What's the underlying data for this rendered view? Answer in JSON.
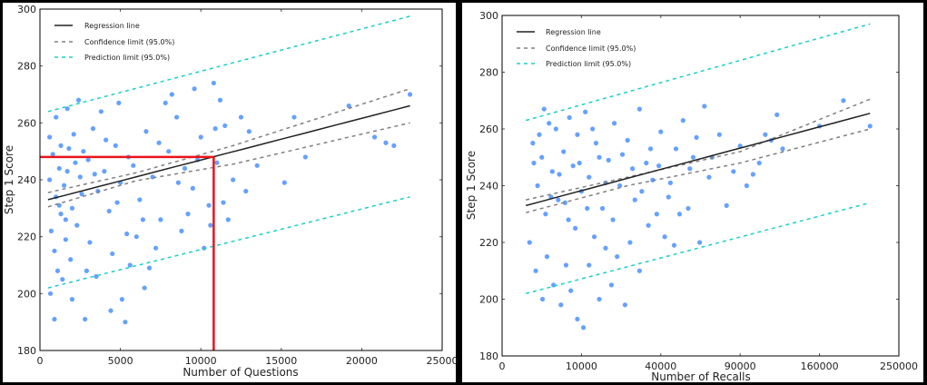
{
  "chart_data": [
    {
      "type": "scatter",
      "title": "",
      "xlabel": "Number of Questions",
      "ylabel": "Step 1 Score",
      "xscale": "linear",
      "xlim": [
        0,
        25000
      ],
      "ylim": [
        180,
        300
      ],
      "xticks": [
        "0",
        "5000",
        "10000",
        "15000",
        "20000",
        "25000"
      ],
      "xtick_values": [
        0,
        5000,
        10000,
        15000,
        20000,
        25000
      ],
      "yticks": [
        "180",
        "200",
        "220",
        "240",
        "260",
        "280",
        "300"
      ],
      "ytick_values": [
        180,
        200,
        220,
        240,
        260,
        280,
        300
      ],
      "grid": false,
      "legend_position": "top-left",
      "legend": [
        "Regression line",
        "Confidence limit (95.0%)",
        "Prediction limit (95.0%)"
      ],
      "colors": {
        "points": "#4a90ff",
        "regression": "#222222",
        "confidence": "#808080",
        "prediction": "#1ccfc9",
        "annotation": "#e8141b"
      },
      "regression": [
        [
          500,
          233
        ],
        [
          23000,
          266
        ]
      ],
      "confidence_upper": [
        [
          500,
          235.5
        ],
        [
          6000,
          242.5
        ],
        [
          12000,
          252
        ],
        [
          23000,
          272
        ]
      ],
      "confidence_lower": [
        [
          500,
          230.5
        ],
        [
          6000,
          239.7
        ],
        [
          12000,
          245.5
        ],
        [
          23000,
          260
        ]
      ],
      "prediction_upper": [
        [
          500,
          264
        ],
        [
          23000,
          297.5
        ]
      ],
      "prediction_lower": [
        [
          500,
          202
        ],
        [
          23000,
          234
        ]
      ],
      "annotation": {
        "x": 10800,
        "y": 248
      },
      "points": [
        [
          600,
          255
        ],
        [
          800,
          249
        ],
        [
          1000,
          262
        ],
        [
          1200,
          244
        ],
        [
          1500,
          238
        ],
        [
          1800,
          251
        ],
        [
          2000,
          230
        ],
        [
          2200,
          246
        ],
        [
          2500,
          241
        ],
        [
          700,
          222
        ],
        [
          900,
          215
        ],
        [
          1100,
          208
        ],
        [
          1300,
          228
        ],
        [
          1600,
          219
        ],
        [
          1900,
          212
        ],
        [
          2300,
          224
        ],
        [
          2600,
          235
        ],
        [
          3000,
          247
        ],
        [
          3300,
          258
        ],
        [
          3600,
          236
        ],
        [
          4000,
          243
        ],
        [
          4300,
          229
        ],
        [
          4700,
          252
        ],
        [
          5000,
          239
        ],
        [
          5400,
          221
        ],
        [
          5800,
          245
        ],
        [
          6200,
          233
        ],
        [
          6600,
          257
        ],
        [
          7000,
          241
        ],
        [
          7500,
          226
        ],
        [
          8000,
          250
        ],
        [
          8500,
          262
        ],
        [
          9000,
          244
        ],
        [
          9500,
          237
        ],
        [
          10000,
          255
        ],
        [
          10500,
          231
        ],
        [
          11000,
          246
        ],
        [
          11500,
          259
        ],
        [
          12000,
          240
        ],
        [
          12500,
          262
        ],
        [
          13000,
          257
        ],
        [
          13500,
          245
        ],
        [
          15200,
          239
        ],
        [
          15800,
          262
        ],
        [
          16500,
          248
        ],
        [
          19200,
          266
        ],
        [
          20800,
          255
        ],
        [
          21500,
          253
        ],
        [
          22000,
          252
        ],
        [
          23000,
          270
        ],
        [
          650,
          200
        ],
        [
          900,
          191
        ],
        [
          1400,
          205
        ],
        [
          2000,
          198
        ],
        [
          2800,
          191
        ],
        [
          3500,
          206
        ],
        [
          4400,
          194
        ],
        [
          5100,
          198
        ],
        [
          5300,
          190
        ],
        [
          6500,
          202
        ],
        [
          1700,
          265
        ],
        [
          2400,
          268
        ],
        [
          3800,
          264
        ],
        [
          4900,
          267
        ],
        [
          8200,
          270
        ],
        [
          9600,
          272
        ],
        [
          10800,
          274
        ],
        [
          11200,
          268
        ],
        [
          7800,
          267
        ],
        [
          3100,
          218
        ],
        [
          4500,
          214
        ],
        [
          5600,
          210
        ],
        [
          6000,
          220
        ],
        [
          7200,
          216
        ],
        [
          8800,
          222
        ],
        [
          10200,
          216
        ],
        [
          10600,
          224
        ],
        [
          9200,
          228
        ],
        [
          11400,
          232
        ],
        [
          12800,
          236
        ],
        [
          600,
          240
        ],
        [
          1000,
          234
        ],
        [
          1300,
          252
        ],
        [
          1700,
          243
        ],
        [
          2100,
          256
        ],
        [
          2700,
          250
        ],
        [
          3400,
          242
        ],
        [
          4100,
          254
        ],
        [
          4800,
          232
        ],
        [
          5500,
          248
        ],
        [
          6400,
          226
        ],
        [
          7400,
          253
        ],
        [
          8600,
          239
        ],
        [
          9800,
          247
        ],
        [
          10900,
          258
        ],
        [
          11700,
          226
        ],
        [
          6800,
          209
        ],
        [
          2900,
          208
        ],
        [
          1600,
          226
        ],
        [
          1200,
          231
        ]
      ]
    },
    {
      "type": "scatter",
      "title": "",
      "xlabel": "Number of Recalls",
      "ylabel": "Step 1 Score",
      "xscale": "sqrt",
      "xlim": [
        0,
        250000
      ],
      "ylim": [
        180,
        300
      ],
      "xticks": [
        "0",
        "10000",
        "40000",
        "90000",
        "160000",
        "250000"
      ],
      "xtick_values": [
        0,
        10000,
        40000,
        90000,
        160000,
        250000
      ],
      "yticks": [
        "180",
        "200",
        "220",
        "240",
        "260",
        "280",
        "300"
      ],
      "ytick_values": [
        180,
        200,
        220,
        240,
        260,
        280,
        300
      ],
      "grid": false,
      "legend_position": "top-left",
      "legend": [
        "Regression line",
        "Confidence limit (95.0%)",
        "Prediction limit (95.0%)"
      ],
      "colors": {
        "points": "#4a90ff",
        "regression": "#222222",
        "confidence": "#808080",
        "prediction": "#1ccfc9"
      },
      "regression": [
        [
          900,
          233
        ],
        [
          215000,
          265.5
        ]
      ],
      "confidence_upper": [
        [
          900,
          235
        ],
        [
          25000,
          243
        ],
        [
          90000,
          252
        ],
        [
          215000,
          270.5
        ]
      ],
      "confidence_lower": [
        [
          900,
          230.5
        ],
        [
          25000,
          240
        ],
        [
          90000,
          248
        ],
        [
          215000,
          260
        ]
      ],
      "prediction_upper": [
        [
          900,
          263
        ],
        [
          215000,
          297
        ]
      ],
      "prediction_lower": [
        [
          900,
          202
        ],
        [
          215000,
          234
        ]
      ],
      "points": [
        [
          1500,
          255
        ],
        [
          2000,
          240
        ],
        [
          2500,
          250
        ],
        [
          3000,
          230
        ],
        [
          3500,
          262
        ],
        [
          4000,
          245
        ],
        [
          5000,
          235
        ],
        [
          6000,
          252
        ],
        [
          7000,
          228
        ],
        [
          8000,
          247
        ],
        [
          9000,
          258
        ],
        [
          10000,
          238
        ],
        [
          11000,
          266
        ],
        [
          12000,
          243
        ],
        [
          14000,
          255
        ],
        [
          16000,
          232
        ],
        [
          18000,
          249
        ],
        [
          20000,
          262
        ],
        [
          22000,
          240
        ],
        [
          25000,
          256
        ],
        [
          28000,
          235
        ],
        [
          30000,
          267
        ],
        [
          33000,
          248
        ],
        [
          36000,
          242
        ],
        [
          40000,
          259
        ],
        [
          44000,
          236
        ],
        [
          48000,
          253
        ],
        [
          52000,
          263
        ],
        [
          56000,
          246
        ],
        [
          60000,
          257
        ],
        [
          65000,
          268
        ],
        [
          70000,
          250
        ],
        [
          75000,
          258
        ],
        [
          80000,
          233
        ],
        [
          85000,
          245
        ],
        [
          90000,
          254
        ],
        [
          100000,
          244
        ],
        [
          115000,
          256
        ],
        [
          120000,
          265
        ],
        [
          125000,
          253
        ],
        [
          160000,
          261
        ],
        [
          185000,
          270
        ],
        [
          215000,
          261
        ],
        [
          1200,
          220
        ],
        [
          1800,
          210
        ],
        [
          2600,
          200
        ],
        [
          3200,
          215
        ],
        [
          4200,
          205
        ],
        [
          5500,
          198
        ],
        [
          6500,
          212
        ],
        [
          7500,
          203
        ],
        [
          9000,
          193
        ],
        [
          10500,
          190
        ],
        [
          12000,
          212
        ],
        [
          13500,
          222
        ],
        [
          15000,
          200
        ],
        [
          17000,
          218
        ],
        [
          19000,
          205
        ],
        [
          21000,
          215
        ],
        [
          24000,
          198
        ],
        [
          26000,
          220
        ],
        [
          30000,
          210
        ],
        [
          34000,
          226
        ],
        [
          38000,
          230
        ],
        [
          42000,
          222
        ],
        [
          47000,
          219
        ],
        [
          55000,
          232
        ],
        [
          62000,
          220
        ],
        [
          1600,
          248
        ],
        [
          2200,
          258
        ],
        [
          2800,
          267
        ],
        [
          3800,
          236
        ],
        [
          4600,
          260
        ],
        [
          5200,
          244
        ],
        [
          6300,
          234
        ],
        [
          7200,
          264
        ],
        [
          8500,
          225
        ],
        [
          9500,
          248
        ],
        [
          11500,
          232
        ],
        [
          13000,
          260
        ],
        [
          15000,
          250
        ],
        [
          17000,
          241
        ],
        [
          19500,
          228
        ],
        [
          23000,
          251
        ],
        [
          27000,
          246
        ],
        [
          31000,
          238
        ],
        [
          35000,
          253
        ],
        [
          39000,
          247
        ],
        [
          45000,
          241
        ],
        [
          50000,
          230
        ],
        [
          58000,
          250
        ],
        [
          68000,
          243
        ],
        [
          95000,
          240
        ],
        [
          105000,
          248
        ],
        [
          110000,
          258
        ]
      ]
    }
  ]
}
